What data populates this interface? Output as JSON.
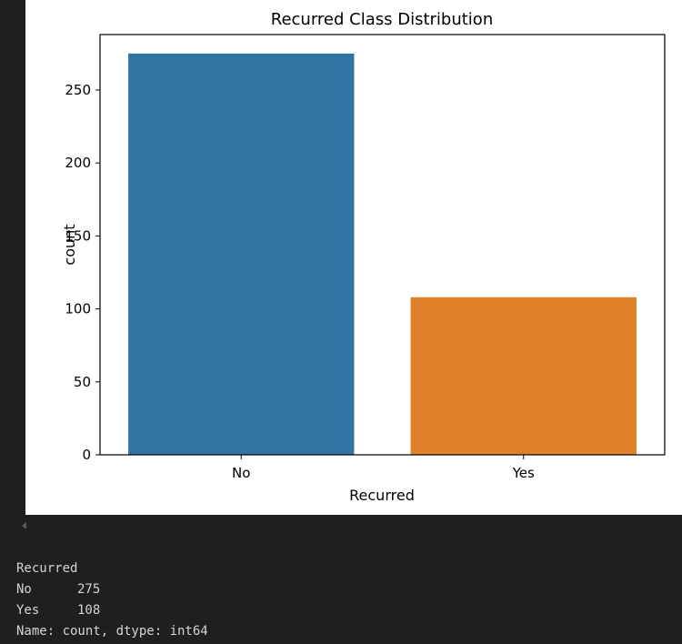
{
  "chart_data": {
    "type": "bar",
    "title": "Recurred Class Distribution",
    "xlabel": "Recurred",
    "ylabel": "count",
    "categories": [
      "No",
      "Yes"
    ],
    "values": [
      275,
      108
    ],
    "colors": [
      "#3274a1",
      "#e1812c"
    ],
    "ylim": [
      0,
      288
    ],
    "yticks": [
      0,
      50,
      100,
      150,
      200,
      250
    ],
    "grid": false,
    "legend": "none"
  },
  "output": {
    "header": "Recurred",
    "rows": [
      {
        "label": "No",
        "value": "275"
      },
      {
        "label": "Yes",
        "value": "108"
      }
    ],
    "footer": "Name: count, dtype: int64"
  }
}
